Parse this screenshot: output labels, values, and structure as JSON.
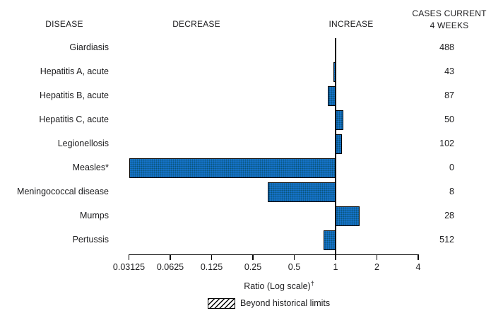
{
  "columns": {
    "disease": "DISEASE",
    "decrease": "DECREASE",
    "increase": "INCREASE",
    "cases_line1": "CASES CURRENT",
    "cases_line2": "4 WEEKS"
  },
  "chart_data": {
    "type": "bar",
    "orientation": "horizontal",
    "x_scale": "log2",
    "baseline": 1,
    "categories": [
      "Giardiasis",
      "Hepatitis A, acute",
      "Hepatitis B, acute",
      "Hepatitis C, acute",
      "Legionellosis",
      "Measles*",
      "Meningococcal disease",
      "Mumps",
      "Pertussis"
    ],
    "values": [
      1.0,
      0.97,
      0.88,
      1.14,
      1.11,
      0.03125,
      0.32,
      1.5,
      0.82
    ],
    "cases_current_4_weeks": [
      "488",
      "43",
      "87",
      "50",
      "102",
      "0",
      "8",
      "28",
      "512"
    ],
    "xlabel": "Ratio (Log scale)",
    "xlabel_superscript": "†",
    "tick_values": [
      0.03125,
      0.0625,
      0.125,
      0.25,
      0.5,
      1,
      2,
      4
    ],
    "tick_labels": [
      "0.03125",
      "0.0625",
      "0.125",
      "0.25",
      "0.5",
      "1",
      "2",
      "4"
    ],
    "xlim": [
      0.03125,
      4
    ],
    "grid": false,
    "legend": {
      "swatch_style": "hatched",
      "label": "Beyond historical limits",
      "position": "bottom-center"
    },
    "bar_color": "#1573cc",
    "bar_border_color": "#000000"
  }
}
